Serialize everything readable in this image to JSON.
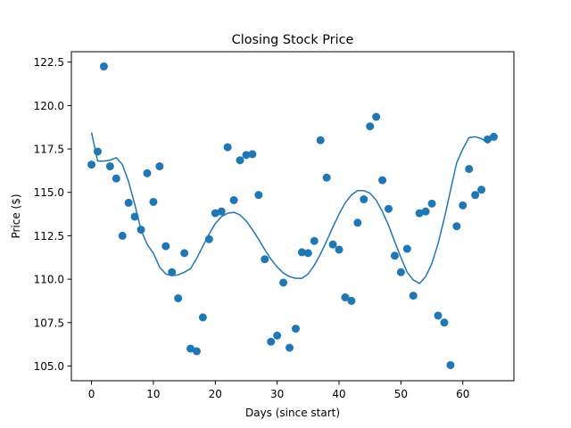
{
  "chart_data": {
    "type": "scatter",
    "title": "Closing Stock Price",
    "xlabel": "Days (since start)",
    "ylabel": "Price ($)",
    "xlim": [
      -3.25,
      68.25
    ],
    "ylim": [
      104.15,
      123.1
    ],
    "xticks": [
      0,
      10,
      20,
      30,
      40,
      50,
      60
    ],
    "xtick_labels": [
      "0",
      "10",
      "20",
      "30",
      "40",
      "50",
      "60"
    ],
    "yticks": [
      105.0,
      107.5,
      110.0,
      112.5,
      115.0,
      117.5,
      120.0,
      122.5
    ],
    "ytick_labels": [
      "105.0",
      "107.5",
      "110.0",
      "112.5",
      "115.0",
      "117.5",
      "120.0",
      "122.5"
    ],
    "grid": false,
    "color": "#1f77b4",
    "series": [
      {
        "kind": "points",
        "x": [
          0,
          1,
          2,
          3,
          4,
          5,
          6,
          7,
          8,
          9,
          10,
          11,
          12,
          13,
          14,
          15,
          16,
          17,
          18,
          19,
          20,
          21,
          22,
          23,
          24,
          25,
          26,
          27,
          28,
          29,
          30,
          31,
          32,
          33,
          34,
          35,
          36,
          37,
          38,
          39,
          40,
          41,
          42,
          43,
          44,
          45,
          46,
          47,
          48,
          49,
          50,
          51,
          52,
          53,
          54,
          55,
          56,
          57,
          58,
          59,
          60,
          61,
          62,
          63,
          64,
          65
        ],
        "y": [
          116.6,
          117.35,
          122.25,
          116.5,
          115.8,
          112.5,
          114.4,
          113.6,
          112.85,
          116.1,
          114.45,
          116.5,
          111.9,
          110.4,
          108.9,
          111.5,
          106.0,
          105.85,
          107.8,
          112.3,
          113.8,
          113.9,
          117.6,
          114.55,
          116.85,
          117.15,
          117.2,
          114.85,
          111.15,
          106.4,
          106.75,
          109.8,
          106.05,
          107.15,
          111.55,
          111.5,
          112.2,
          118.0,
          115.85,
          112.0,
          111.7,
          108.95,
          108.75,
          113.25,
          114.6,
          118.8,
          119.35,
          115.7,
          114.05,
          111.35,
          110.4,
          111.75,
          109.05,
          113.8,
          113.9,
          114.35,
          107.9,
          107.5,
          105.05,
          113.05,
          114.25,
          116.35,
          114.85,
          115.15,
          118.05,
          118.2
        ]
      },
      {
        "kind": "line",
        "x": [
          0,
          1,
          2,
          3,
          4,
          5,
          6,
          7,
          8,
          9,
          10,
          11,
          12,
          13,
          14,
          15,
          16,
          17,
          18,
          19,
          20,
          21,
          22,
          23,
          24,
          25,
          26,
          27,
          28,
          29,
          30,
          31,
          32,
          33,
          34,
          35,
          36,
          37,
          38,
          39,
          40,
          41,
          42,
          43,
          44,
          45,
          46,
          47,
          48,
          49,
          50,
          51,
          52,
          53,
          54,
          55,
          56,
          57,
          58,
          59,
          60,
          61,
          62,
          63,
          64,
          65
        ],
        "y": [
          118.45,
          116.8,
          116.8,
          116.85,
          117.0,
          116.6,
          115.6,
          114.3,
          112.85,
          112.0,
          111.5,
          110.7,
          110.3,
          110.2,
          110.25,
          110.4,
          110.6,
          111.2,
          111.9,
          112.6,
          113.2,
          113.6,
          113.8,
          113.85,
          113.7,
          113.35,
          112.85,
          112.3,
          111.7,
          111.15,
          110.7,
          110.35,
          110.15,
          110.05,
          110.05,
          110.3,
          110.8,
          111.45,
          112.2,
          113.0,
          113.75,
          114.4,
          114.85,
          115.1,
          115.1,
          114.95,
          114.55,
          113.9,
          113.1,
          112.15,
          111.25,
          110.4,
          109.95,
          109.75,
          110.15,
          110.9,
          112.05,
          113.5,
          115.1,
          116.7,
          117.5,
          118.15,
          118.2,
          118.1,
          117.85,
          118.2
        ]
      }
    ]
  }
}
